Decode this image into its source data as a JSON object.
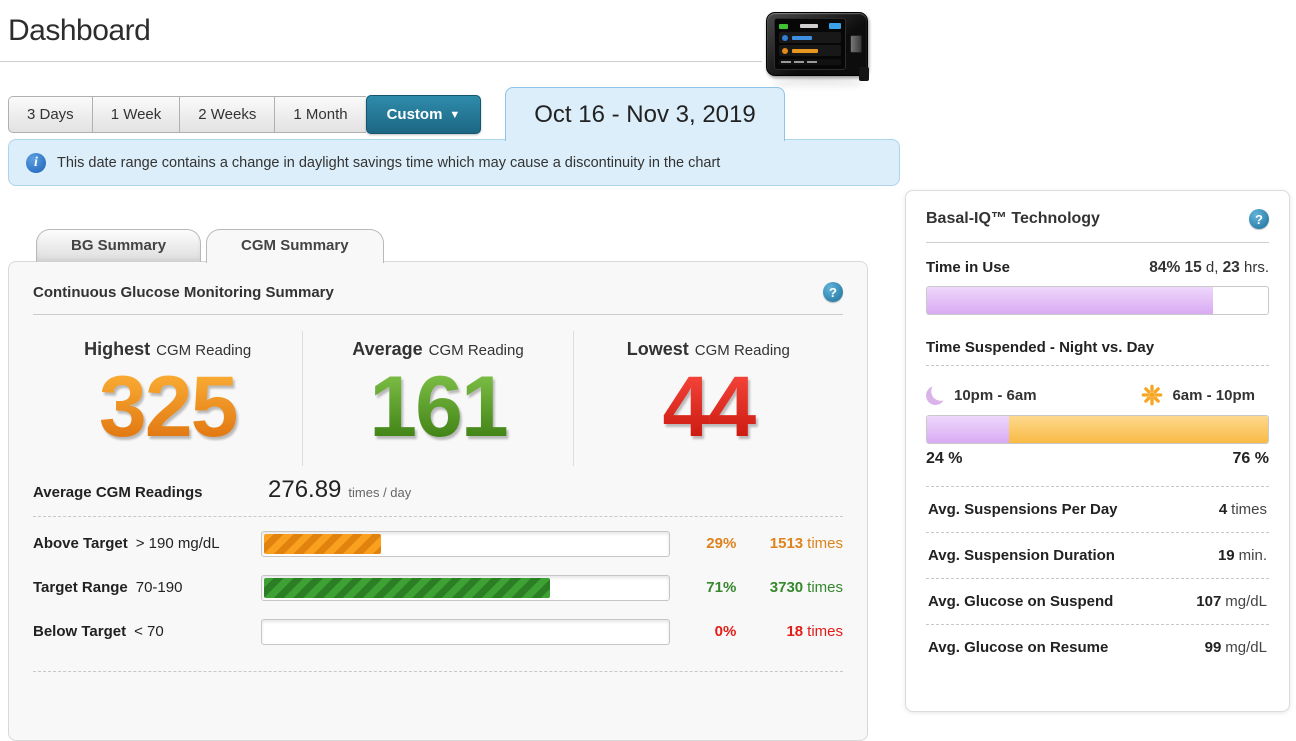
{
  "page": {
    "title": "Dashboard"
  },
  "date_range": {
    "presets": [
      "3 Days",
      "1 Week",
      "2 Weeks",
      "1 Month"
    ],
    "custom": "Custom",
    "custom_caret": "▼",
    "selected": "Oct 16 - Nov 3, 2019",
    "notice": "This date range contains a change in daylight savings time which may cause a discontinuity in the chart"
  },
  "tabs": {
    "bg": "BG Summary",
    "cgm": "CGM Summary"
  },
  "cgm": {
    "title": "Continuous Glucose Monitoring Summary",
    "highest": {
      "label_bold": "Highest",
      "label_rest": "CGM Reading",
      "value": "325"
    },
    "average": {
      "label_bold": "Average",
      "label_rest": "CGM Reading",
      "value": "161"
    },
    "lowest": {
      "label_bold": "Lowest",
      "label_rest": "CGM Reading",
      "value": "44"
    },
    "avg_readings": {
      "label": "Average CGM Readings",
      "value": "276.89",
      "unit": "times / day"
    },
    "targets": [
      {
        "label": "Above Target",
        "range": "> 190 mg/dL",
        "percent": "29%",
        "fill": 29,
        "count": "1513",
        "unit": "times"
      },
      {
        "label": "Target Range",
        "range": "70-190",
        "percent": "71%",
        "fill": 71,
        "count": "3730",
        "unit": "times"
      },
      {
        "label": "Below Target",
        "range": "< 70",
        "percent": "0%",
        "fill": 0,
        "count": "18",
        "unit": "times"
      }
    ]
  },
  "basal": {
    "title": "Basal-IQ™ Technology",
    "time_in_use": {
      "label": "Time in Use",
      "percent": "84%",
      "days": "15",
      "days_unit": "d,",
      "hours": "23",
      "hours_unit": "hrs.",
      "fill": 84
    },
    "suspended": {
      "title": "Time Suspended - Night vs. Day",
      "night": {
        "label": "10pm - 6am",
        "percent": "24 %",
        "fill": 24
      },
      "day": {
        "label": "6am - 10pm",
        "percent": "76 %",
        "fill": 76
      }
    },
    "rows": [
      {
        "label": "Avg. Suspensions Per Day",
        "value": "4",
        "unit": "times"
      },
      {
        "label": "Avg. Suspension Duration",
        "value": "19",
        "unit": "min."
      },
      {
        "label": "Avg. Glucose on Suspend",
        "value": "107",
        "unit": "mg/dL"
      },
      {
        "label": "Avg. Glucose on Resume",
        "value": "99",
        "unit": "mg/dL"
      }
    ]
  },
  "colors": {
    "accent_teal": "#26758f",
    "banner_blue": "#dceef9",
    "status_orange": "#e0821c",
    "status_green": "#35882c",
    "status_red": "#e31d18",
    "basal_purple": "#d9aaf3",
    "day_orange": "#f9ba45"
  }
}
